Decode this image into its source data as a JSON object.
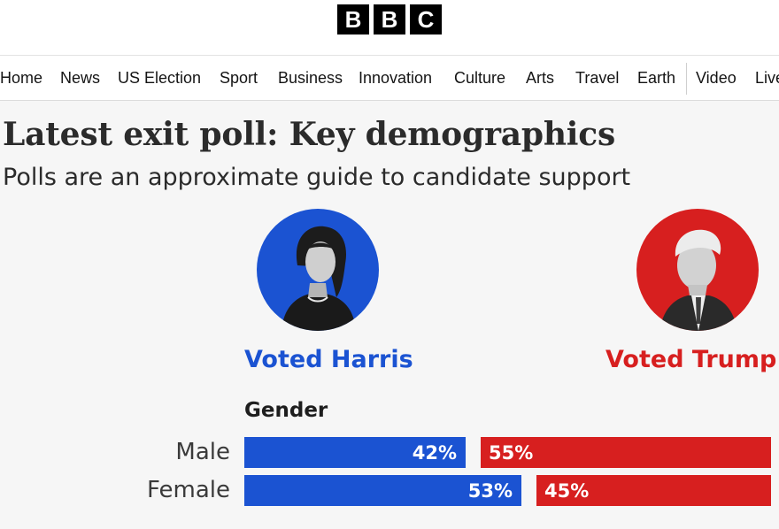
{
  "header": {
    "logo_letters": [
      "B",
      "B",
      "C"
    ]
  },
  "nav": {
    "items": [
      {
        "label": "Home"
      },
      {
        "label": "News"
      },
      {
        "label": "US Election"
      },
      {
        "label": "Sport"
      },
      {
        "label": "Business"
      },
      {
        "label": "Innovation"
      },
      {
        "label": "Culture"
      },
      {
        "label": "Arts"
      },
      {
        "label": "Travel"
      },
      {
        "label": "Earth"
      },
      {
        "label": "Video"
      },
      {
        "label": "Live"
      }
    ]
  },
  "article": {
    "title": "Latest exit poll: Key demographics",
    "subtitle": "Polls are an approximate guide to candidate support"
  },
  "candidates": {
    "harris": {
      "label": "Voted Harris",
      "color": "#1b53d2",
      "icon": "harris-portrait"
    },
    "trump": {
      "label": "Voted Trump",
      "color": "#d71f1f",
      "icon": "trump-portrait"
    }
  },
  "chart_data": {
    "type": "bar",
    "title": "Gender",
    "categories": [
      "Male",
      "Female"
    ],
    "series": [
      {
        "name": "Voted Harris",
        "values": [
          42,
          53
        ],
        "labels": [
          "42%",
          "53%"
        ],
        "color": "#1b53d2"
      },
      {
        "name": "Voted Trump",
        "values": [
          55,
          45
        ],
        "labels": [
          "55%",
          "45%"
        ],
        "color": "#d71f1f"
      }
    ]
  }
}
